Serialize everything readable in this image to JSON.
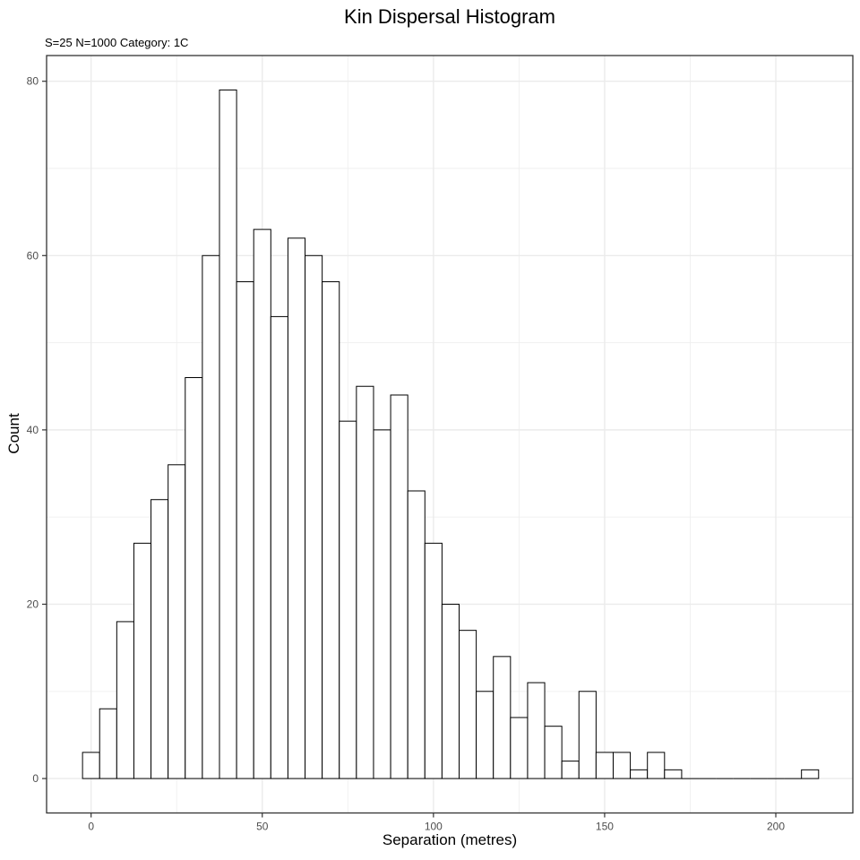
{
  "chart_data": {
    "type": "bar",
    "subtype": "histogram",
    "title": "Kin Dispersal Histogram",
    "subtitle": "S=25 N=1000 Category: 1C",
    "xlabel": "Separation (metres)",
    "ylabel": "Count",
    "bin_width": 5,
    "bin_centers": [
      0,
      5,
      10,
      15,
      20,
      25,
      30,
      35,
      40,
      45,
      50,
      55,
      60,
      65,
      70,
      75,
      80,
      85,
      90,
      95,
      100,
      105,
      110,
      115,
      120,
      125,
      130,
      135,
      140,
      145,
      150,
      155,
      160,
      165,
      170,
      175,
      180,
      185,
      190,
      195,
      200,
      205,
      210
    ],
    "counts": [
      3,
      8,
      18,
      27,
      32,
      36,
      46,
      60,
      79,
      57,
      63,
      53,
      62,
      60,
      57,
      41,
      45,
      40,
      44,
      33,
      27,
      20,
      17,
      10,
      14,
      7,
      11,
      6,
      2,
      10,
      3,
      3,
      1,
      3,
      1,
      0,
      0,
      0,
      0,
      0,
      0,
      0,
      1
    ],
    "total_n": 1000,
    "x_ticks": [
      0,
      50,
      100,
      150,
      200
    ],
    "x_minor_ticks": [
      25,
      75,
      125,
      175
    ],
    "y_ticks": [
      0,
      20,
      40,
      60,
      80
    ],
    "y_minor_ticks": [
      10,
      30,
      50,
      70
    ],
    "xlim": [
      -13,
      222.5
    ],
    "ylim": [
      -3.95,
      82.95
    ],
    "grid": true,
    "legend_position": "none",
    "colors": {
      "bar_fill": "#ffffff",
      "bar_stroke": "#000000",
      "grid_major": "#ebebeb",
      "grid_minor": "#efefef",
      "panel_border": "#333333",
      "tick_mark": "#333333",
      "tick_label": "#4d4d4d",
      "text": "#000000",
      "background": "#ffffff"
    }
  }
}
